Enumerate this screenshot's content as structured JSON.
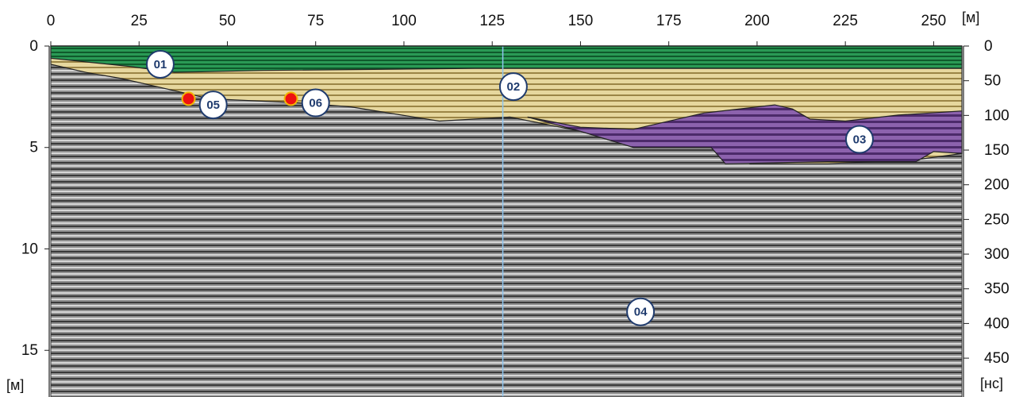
{
  "chart_data": {
    "type": "radargram",
    "x_axis": {
      "unit": "[м]",
      "ticks": [
        "0",
        "25",
        "50",
        "75",
        "100",
        "125",
        "150",
        "175",
        "200",
        "225",
        "250"
      ],
      "range": [
        0,
        258
      ]
    },
    "y_axis_left": {
      "unit": "[м]",
      "ticks": [
        "0",
        "5",
        "10",
        "15"
      ],
      "range": [
        0,
        17.3
      ]
    },
    "y_axis_right": {
      "unit": "[нс]",
      "ticks": [
        "0",
        "50",
        "100",
        "150",
        "200",
        "250",
        "300",
        "350",
        "400",
        "450"
      ],
      "range": [
        0,
        506
      ]
    },
    "layers": [
      {
        "id": "01",
        "color": "#1e8a45",
        "label_pos": {
          "x": 31,
          "depth": 0.9
        }
      },
      {
        "id": "02",
        "color": "#c9b67a",
        "label_pos": {
          "x": 131,
          "depth": 2.0
        }
      },
      {
        "id": "03",
        "color": "#7a4f9a",
        "label_pos": {
          "x": 229,
          "depth": 4.6
        }
      },
      {
        "id": "04",
        "color": "#9a9a9a",
        "label_pos": {
          "x": 167,
          "depth": 13.1
        }
      }
    ],
    "points": [
      {
        "id": "05",
        "marker": {
          "x": 39,
          "depth": 2.6
        },
        "label_pos": {
          "x": 46,
          "depth": 2.9
        }
      },
      {
        "id": "06",
        "marker": {
          "x": 68,
          "depth": 2.6
        },
        "label_pos": {
          "x": 75,
          "depth": 2.8
        }
      }
    ],
    "boundaries": {
      "layer01_bottom": [
        [
          0,
          0.6
        ],
        [
          22,
          1.0
        ],
        [
          35,
          1.3
        ],
        [
          60,
          1.2
        ],
        [
          120,
          1.1
        ],
        [
          200,
          1.1
        ],
        [
          258,
          1.1
        ]
      ],
      "layer02_bottom": [
        [
          0,
          0.9
        ],
        [
          10,
          1.3
        ],
        [
          20,
          1.6
        ],
        [
          35,
          2.2
        ],
        [
          45,
          2.6
        ],
        [
          70,
          2.8
        ],
        [
          85,
          3.0
        ],
        [
          110,
          3.7
        ],
        [
          130,
          3.5
        ],
        [
          150,
          4.2
        ],
        [
          165,
          5.0
        ],
        [
          190,
          5.0
        ],
        [
          198,
          5.8
        ],
        [
          220,
          5.8
        ],
        [
          245,
          5.6
        ],
        [
          258,
          5.3
        ]
      ],
      "layer03_top": [
        [
          135,
          3.5
        ],
        [
          150,
          4.0
        ],
        [
          165,
          4.1
        ],
        [
          185,
          3.3
        ],
        [
          205,
          2.9
        ],
        [
          210,
          3.1
        ],
        [
          215,
          3.6
        ],
        [
          225,
          3.7
        ],
        [
          240,
          3.4
        ],
        [
          258,
          3.2
        ]
      ],
      "layer03_bottom": [
        [
          135,
          3.5
        ],
        [
          150,
          4.2
        ],
        [
          165,
          5.0
        ],
        [
          187,
          5.0
        ],
        [
          191,
          5.8
        ],
        [
          220,
          5.7
        ],
        [
          245,
          5.7
        ],
        [
          250,
          5.2
        ],
        [
          258,
          5.3
        ]
      ]
    },
    "vertical_marker_x": 128
  }
}
